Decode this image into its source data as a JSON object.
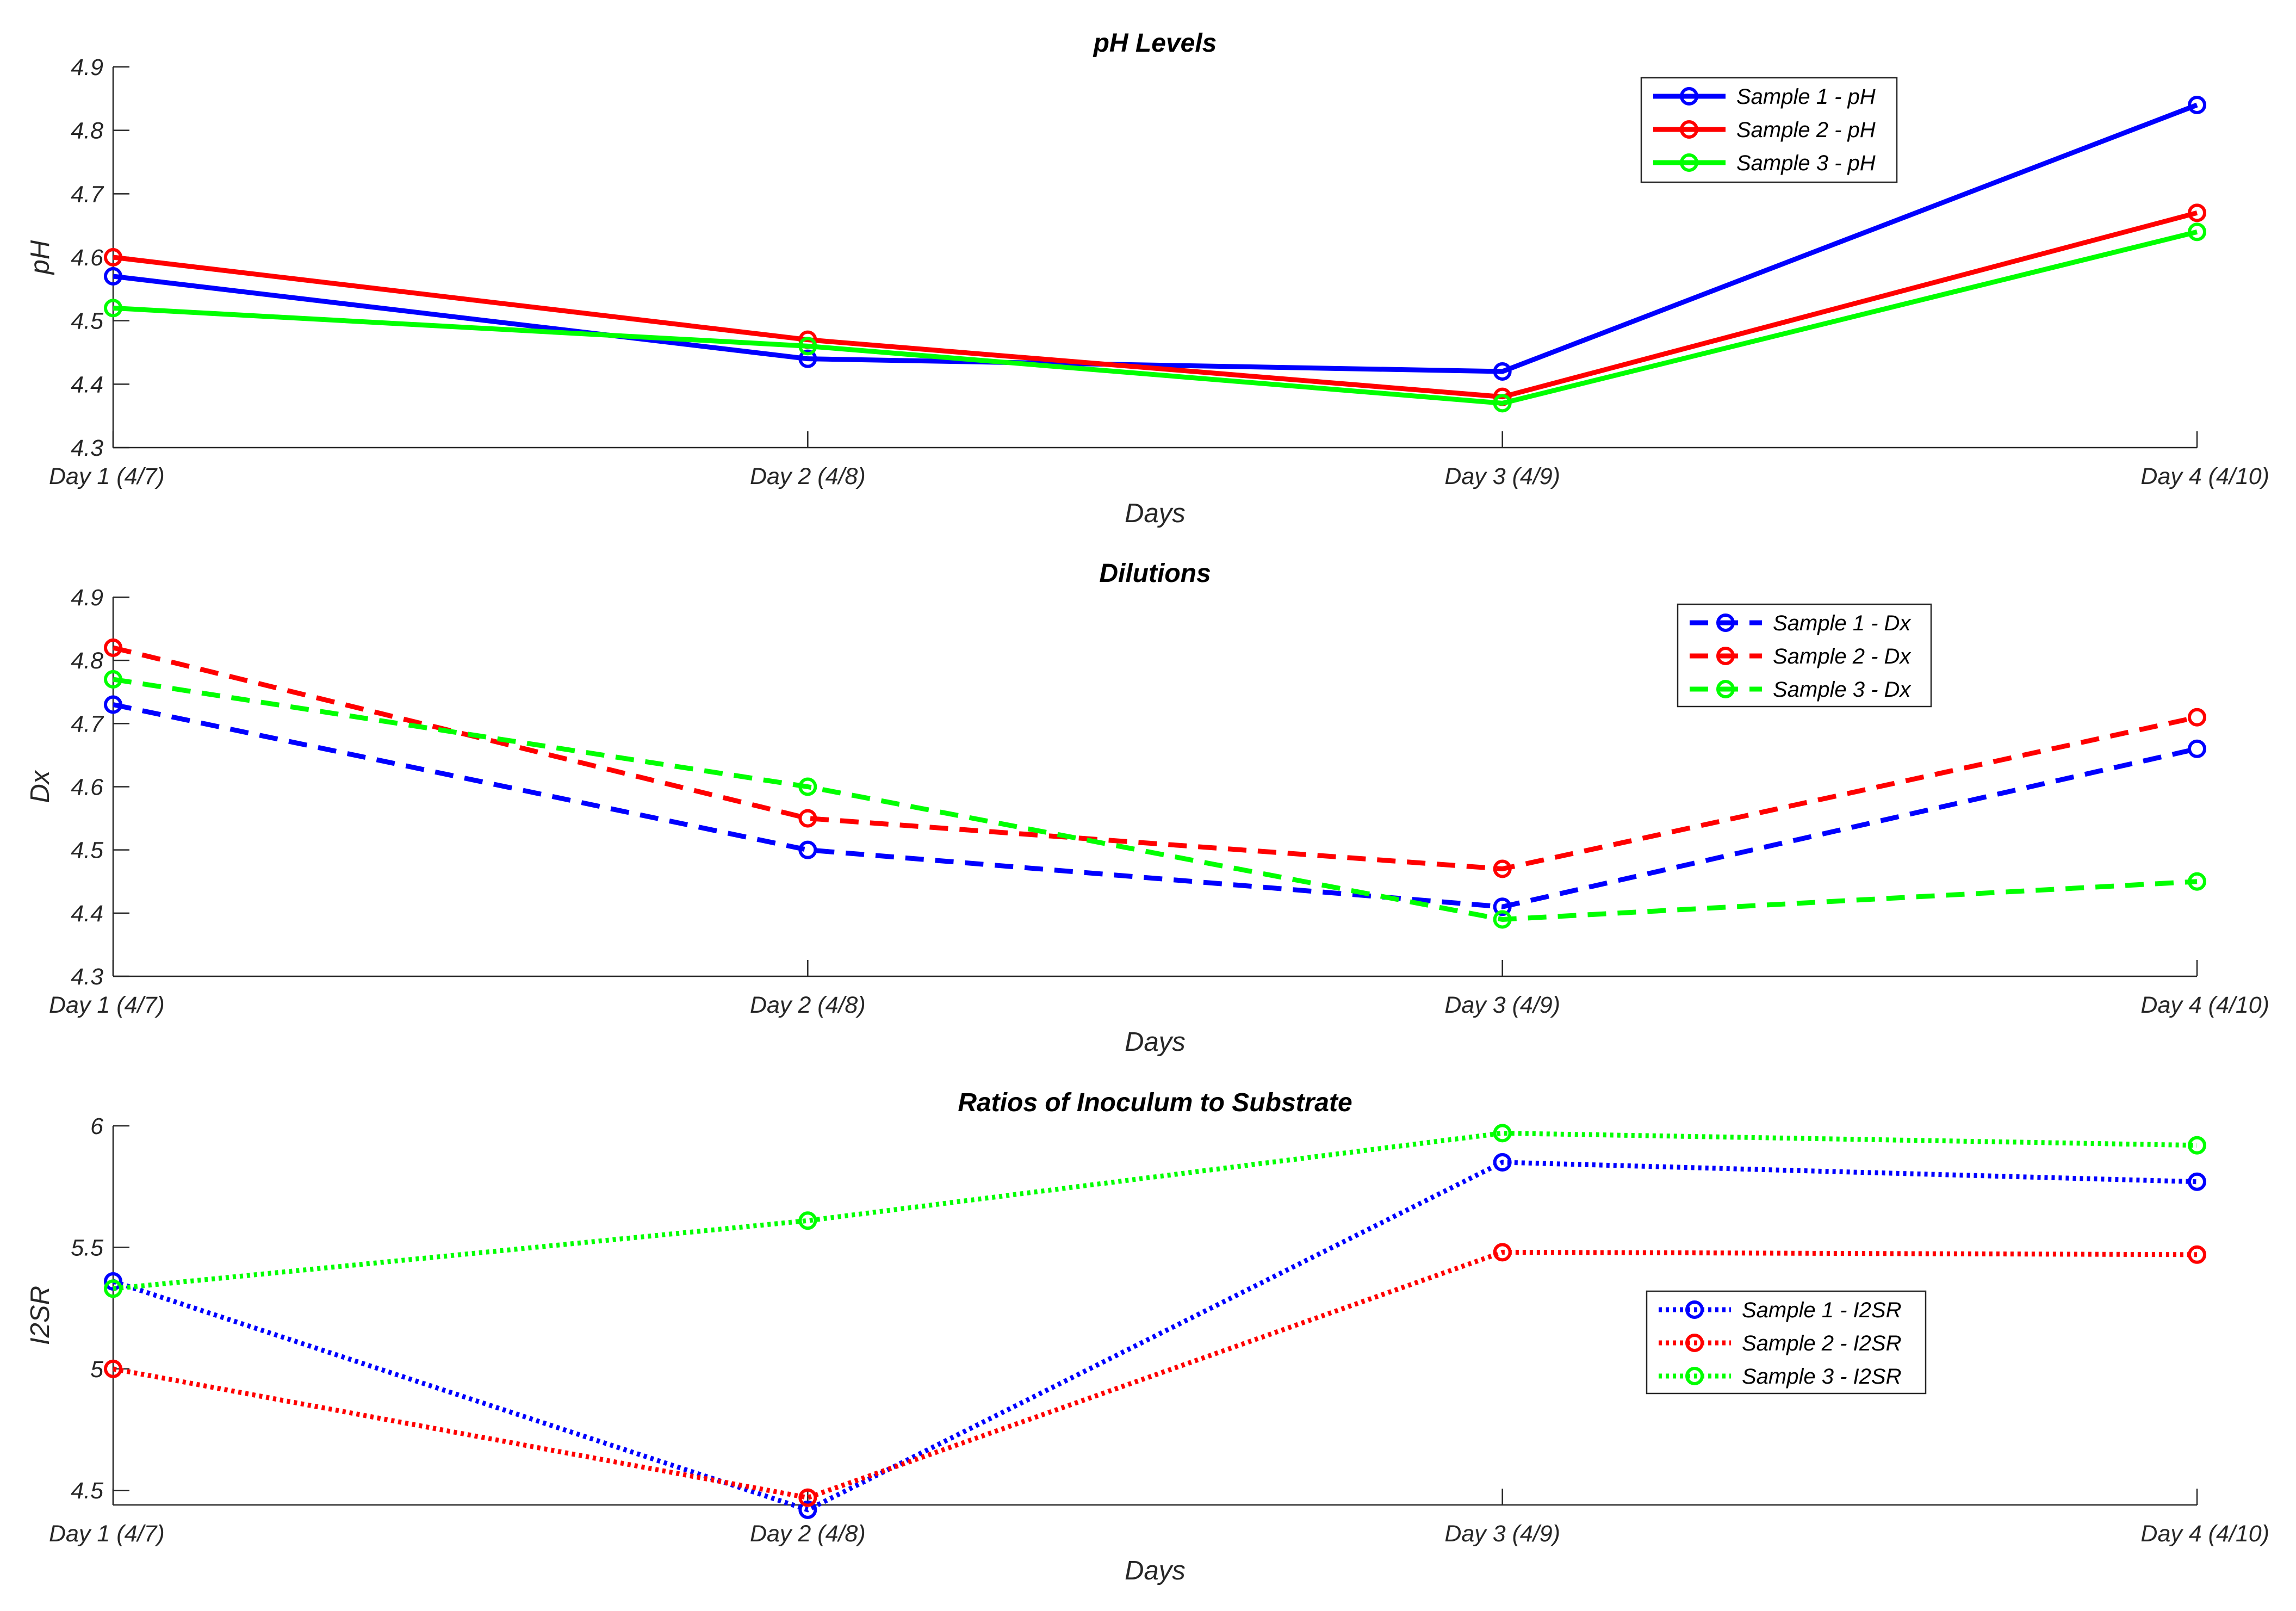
{
  "chart_data": [
    {
      "type": "line",
      "title": "pH Levels",
      "xlabel": "Days",
      "ylabel": "pH",
      "categories": [
        "Day 1 (4/7)",
        "Day 2 (4/8)",
        "Day 3 (4/9)",
        "Day 4 (4/10)"
      ],
      "ylim": [
        4.3,
        4.9
      ],
      "yticks": [
        4.3,
        4.4,
        4.5,
        4.6,
        4.7,
        4.8,
        4.9
      ],
      "ytick_labels": [
        "4.3",
        "4.4",
        "4.5",
        "4.6",
        "4.7",
        "4.8",
        "4.9"
      ],
      "line_style": "solid",
      "legend_position": "top-right",
      "series": [
        {
          "name": "Sample 1 - pH",
          "color": "#0000ff",
          "values": [
            4.57,
            4.44,
            4.42,
            4.84
          ]
        },
        {
          "name": "Sample 2 - pH",
          "color": "#ff0000",
          "values": [
            4.6,
            4.47,
            4.38,
            4.67
          ]
        },
        {
          "name": "Sample 3 - pH",
          "color": "#00ff00",
          "values": [
            4.52,
            4.46,
            4.37,
            4.64
          ]
        }
      ]
    },
    {
      "type": "line",
      "title": "Dilutions",
      "xlabel": "Days",
      "ylabel": "Dx",
      "categories": [
        "Day 1 (4/7)",
        "Day 2 (4/8)",
        "Day 3 (4/9)",
        "Day 4 (4/10)"
      ],
      "ylim": [
        4.3,
        4.9
      ],
      "yticks": [
        4.3,
        4.4,
        4.5,
        4.6,
        4.7,
        4.8,
        4.9
      ],
      "ytick_labels": [
        "4.3",
        "4.4",
        "4.5",
        "4.6",
        "4.7",
        "4.8",
        "4.9"
      ],
      "line_style": "dashed",
      "legend_position": "top-right",
      "series": [
        {
          "name": "Sample 1 - Dx",
          "color": "#0000ff",
          "values": [
            4.73,
            4.5,
            4.41,
            4.66
          ]
        },
        {
          "name": "Sample 2 - Dx",
          "color": "#ff0000",
          "values": [
            4.82,
            4.55,
            4.47,
            4.71
          ]
        },
        {
          "name": "Sample 3 - Dx",
          "color": "#00ff00",
          "values": [
            4.77,
            4.6,
            4.39,
            4.45
          ]
        }
      ]
    },
    {
      "type": "line",
      "title": "Ratios of Inoculum to Substrate",
      "xlabel": "Days",
      "ylabel": "I2SR",
      "categories": [
        "Day 1 (4/7)",
        "Day 2 (4/8)",
        "Day 3 (4/9)",
        "Day 4 (4/10)"
      ],
      "ylim": [
        4.44,
        6.0
      ],
      "yticks": [
        4.5,
        5.0,
        5.5,
        6.0
      ],
      "ytick_labels": [
        "4.5",
        "5",
        "5.5",
        "6"
      ],
      "line_style": "dotted",
      "legend_position": "right",
      "series": [
        {
          "name": "Sample 1 - I2SR",
          "color": "#0000ff",
          "values": [
            5.36,
            4.42,
            5.85,
            5.77
          ]
        },
        {
          "name": "Sample 2 - I2SR",
          "color": "#ff0000",
          "values": [
            5.0,
            4.47,
            5.48,
            5.47
          ]
        },
        {
          "name": "Sample 3 - I2SR",
          "color": "#00ff00",
          "values": [
            5.33,
            5.61,
            5.97,
            5.92
          ]
        }
      ]
    }
  ]
}
